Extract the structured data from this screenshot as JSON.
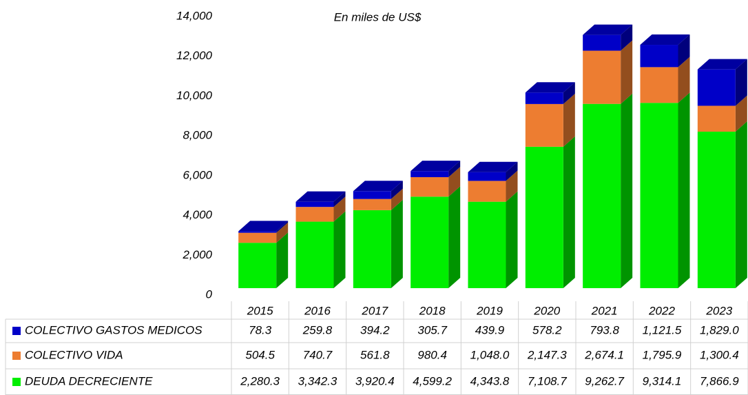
{
  "chart_data": {
    "type": "bar3d_stacked_table",
    "title": "En miles de US$",
    "categories": [
      "2015",
      "2016",
      "2017",
      "2018",
      "2019",
      "2020",
      "2021",
      "2022",
      "2023"
    ],
    "series": [
      {
        "name": "DEUDA DECRECIENTE",
        "color": "#00ee00",
        "values": [
          2280.3,
          3342.3,
          3920.4,
          4599.2,
          4343.8,
          7108.7,
          9262.7,
          9314.1,
          7866.9
        ],
        "value_labels": [
          "2,280.3",
          "3,342.3",
          "3,920.4",
          "4,599.2",
          "4,343.8",
          "7,108.7",
          "9,262.7",
          "9,314.1",
          "7,866.9"
        ]
      },
      {
        "name": "COLECTIVO VIDA",
        "color": "#ed7d31",
        "values": [
          504.5,
          740.7,
          561.8,
          980.4,
          1048.0,
          2147.3,
          2674.1,
          1795.9,
          1300.4
        ],
        "value_labels": [
          "504.5",
          "740.7",
          "561.8",
          "980.4",
          "1,048.0",
          "2,147.3",
          "2,674.1",
          "1,795.9",
          "1,300.4"
        ]
      },
      {
        "name": "COLECTIVO GASTOS MEDICOS",
        "color": "#0000c8",
        "values": [
          78.3,
          259.8,
          394.2,
          305.7,
          439.9,
          578.2,
          793.8,
          1121.5,
          1829.0
        ],
        "value_labels": [
          "78.3",
          "259.8",
          "394.2",
          "305.7",
          "439.9",
          "578.2",
          "793.8",
          "1,121.5",
          "1,829.0"
        ]
      }
    ],
    "ylim": [
      0,
      14000
    ],
    "yticks": [
      0,
      {
        "value": 2000,
        "label": "2,000"
      },
      {
        "value": 4000,
        "label": "4,000"
      },
      {
        "value": 6000,
        "label": "6,000"
      },
      {
        "value": 8000,
        "label": "8,000"
      },
      {
        "value": 10000,
        "label": "10,000"
      },
      {
        "value": 12000,
        "label": "12,000"
      },
      {
        "value": 14000,
        "label": "14,000"
      }
    ],
    "grid": false
  }
}
